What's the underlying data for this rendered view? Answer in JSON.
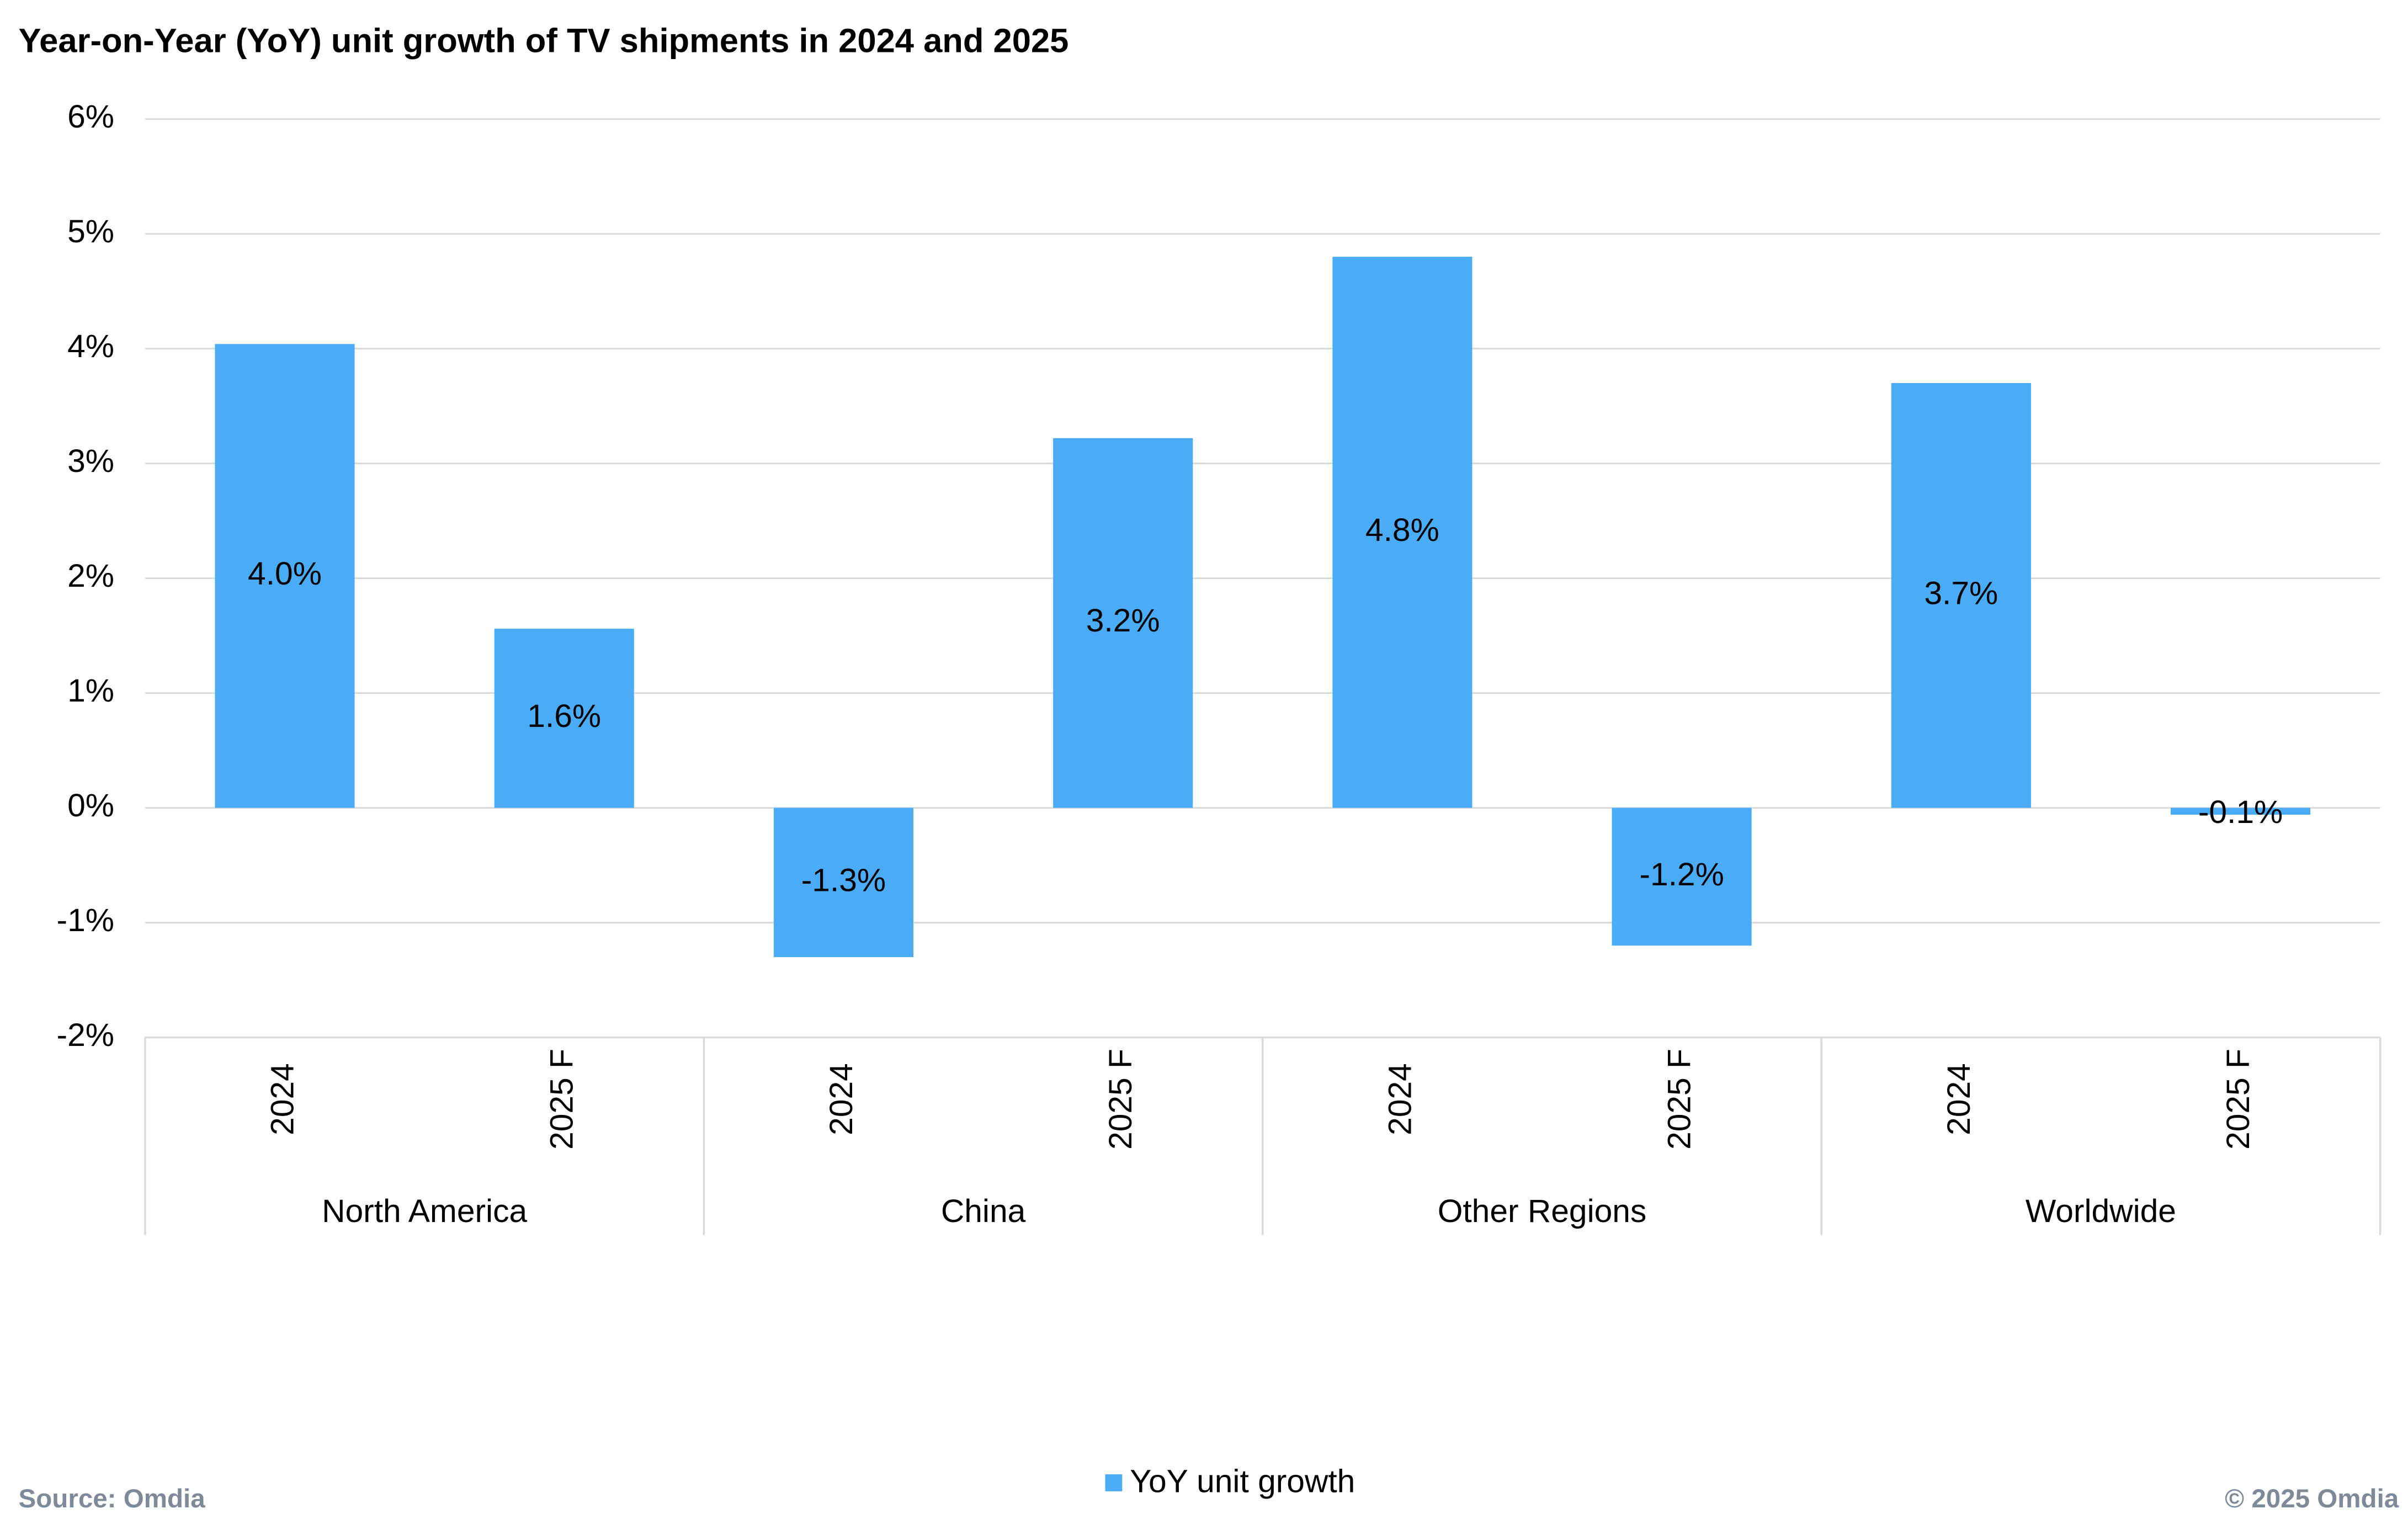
{
  "chart_data": {
    "type": "bar",
    "title": "Year-on-Year (YoY) unit growth of TV shipments in 2024 and 2025",
    "categories": [
      "2024",
      "2025 F",
      "2024",
      "2025 F",
      "2024",
      "2025 F",
      "2024",
      "2025 F"
    ],
    "groups": [
      "North America",
      "China",
      "Other Regions",
      "Worldwide"
    ],
    "series": [
      {
        "name": "YoY unit growth",
        "color": "#4aabf7",
        "values": [
          4.04,
          1.56,
          -1.3,
          3.22,
          4.8,
          -1.2,
          3.7,
          -0.06
        ],
        "value_labels": [
          "4.0%",
          "1.6%",
          "-1.3%",
          "3.2%",
          "4.8%",
          "-1.2%",
          "3.7%",
          "-0.1%"
        ]
      }
    ],
    "ylim": [
      -2,
      6
    ],
    "yticks": [
      {
        "value": -2,
        "label": "-2%"
      },
      {
        "value": -1,
        "label": "-1%"
      },
      {
        "value": 0,
        "label": "0%"
      },
      {
        "value": 1,
        "label": "1%"
      },
      {
        "value": 2,
        "label": "2%"
      },
      {
        "value": 3,
        "label": "3%"
      },
      {
        "value": 4,
        "label": "4%"
      },
      {
        "value": 5,
        "label": "5%"
      },
      {
        "value": 6,
        "label": "6%"
      }
    ],
    "grid": true,
    "legend": "bottom",
    "source": "Source: Omdia",
    "copyright": "© 2025 Omdia"
  }
}
